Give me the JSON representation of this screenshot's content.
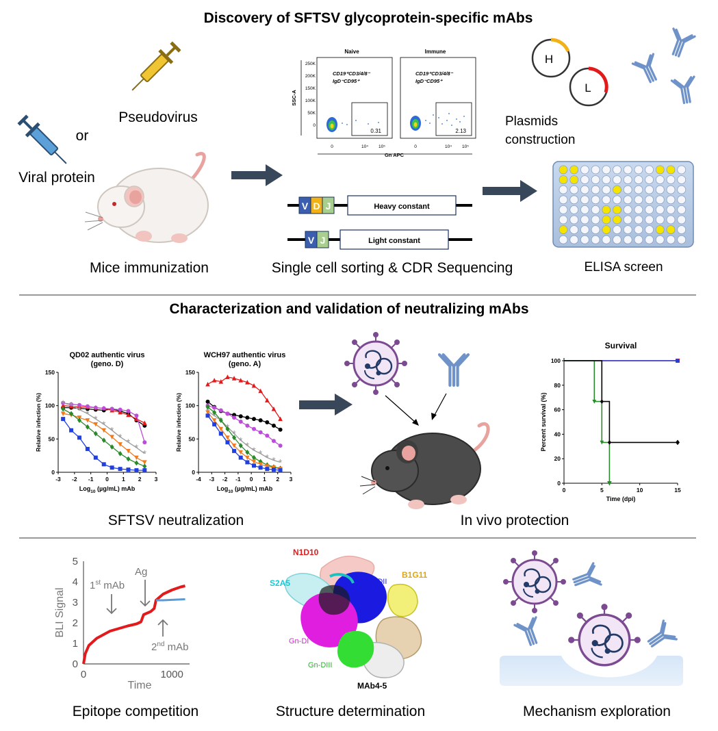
{
  "section1": {
    "title": "Discovery of SFTSV glycoprotein-specific mAbs",
    "pseudovirus": "Pseudovirus",
    "or": "or",
    "viral_protein": "Viral protein",
    "mice_label": "Mice immunization",
    "sorting_label": "Single cell sorting & CDR Sequencing",
    "plasmids_label_1": "Plasmids",
    "plasmids_label_2": "construction",
    "elisa_label": "ELISA screen",
    "H": "H",
    "L": "L",
    "facs": {
      "naive_title": "Naive",
      "immune_title": "Immune",
      "y_label": "SSC-A",
      "x_label": "Gn APC",
      "y_ticks": [
        "250K",
        "200K",
        "150K",
        "100K",
        "50K",
        "0"
      ],
      "x_ticks": [
        "0",
        "10⁴",
        "10⁵"
      ],
      "naive_gate_1": "CD19⁺CD3/4/8⁻",
      "naive_gate_2": "IgD⁻CD95⁺",
      "immune_gate_1": "CD19⁺CD3/4/8⁻",
      "immune_gate_2": "IgD⁻CD95⁺",
      "naive_pct": "0.31",
      "immune_pct": "2.13"
    },
    "heavy": {
      "V": "V",
      "D": "D",
      "J": "J",
      "constant": "Heavy constant"
    },
    "light": {
      "V": "V",
      "J": "J",
      "constant": "Light constant"
    },
    "elisa_wells": [
      [
        1,
        1,
        0,
        0,
        0,
        0,
        0,
        0,
        0,
        1,
        1,
        0
      ],
      [
        1,
        1,
        0,
        0,
        0,
        0,
        0,
        0,
        0,
        0,
        0,
        0
      ],
      [
        0,
        0,
        0,
        0,
        0,
        1,
        0,
        0,
        0,
        0,
        0,
        0
      ],
      [
        0,
        0,
        0,
        0,
        0,
        0,
        0,
        0,
        0,
        0,
        0,
        0
      ],
      [
        0,
        0,
        0,
        0,
        1,
        1,
        0,
        0,
        0,
        0,
        0,
        0
      ],
      [
        0,
        0,
        0,
        0,
        1,
        1,
        0,
        0,
        0,
        0,
        0,
        0
      ],
      [
        1,
        0,
        0,
        0,
        1,
        0,
        0,
        0,
        0,
        1,
        1,
        0
      ],
      [
        0,
        0,
        0,
        0,
        0,
        0,
        0,
        0,
        0,
        0,
        0,
        0
      ]
    ],
    "colors": {
      "V": "#3b5fae",
      "D": "#f2b114",
      "J": "#a8cf8e",
      "well_yellow": "#f5e400",
      "plate_bg": "#b9cce4"
    }
  },
  "section2": {
    "title": "Characterization and validation of neutralizing mAbs",
    "neutralization_label": "SFTSV neutralization",
    "protection_label": "In vivo protection",
    "survival_title": "Survival"
  },
  "section3": {
    "epitope_label": "Epitope competition",
    "structure_label": "Structure determination",
    "mechanism_label": "Mechanism exploration",
    "bli": {
      "y_label": "BLI Signal",
      "x_label": "Time",
      "y_ticks": [
        "5",
        "4",
        "3",
        "2",
        "1",
        "0"
      ],
      "x_ticks": [
        "0",
        "1000"
      ],
      "first_mab": "1",
      "first_sup": "st",
      "first_rest": " mAb",
      "ag": "Ag",
      "second_mab": "2",
      "second_sup": "nd",
      "second_rest": " mAb"
    },
    "structure": {
      "n1d10": "N1D10",
      "s2a5": "S2A5",
      "b1g11": "B1G11",
      "gn_dii": "Gn-DII",
      "gn_di": "Gn-DI",
      "gn_diii": "Gn-DIII",
      "mab45": "MAb4-5"
    }
  },
  "chart_data": [
    {
      "type": "line",
      "title": "QD02 authentic virus\n(geno. D)",
      "title_line1": "QD02 authentic virus",
      "title_line2": "(geno. D)",
      "xlabel": "Log10 (µg/mL) mAb",
      "ylabel": "Relative infection (%)",
      "xlim": [
        -3,
        3
      ],
      "ylim": [
        0,
        150
      ],
      "x_ticks": [
        -3,
        -2,
        -1,
        0,
        1,
        2,
        3
      ],
      "y_ticks": [
        0,
        50,
        100,
        150
      ],
      "x": [
        -2.7,
        -2.2,
        -1.7,
        -1.2,
        -0.7,
        -0.2,
        0.3,
        0.8,
        1.3,
        1.8,
        2.3
      ],
      "series": [
        {
          "color": "#000000",
          "marker": "circle",
          "values": [
            97,
            97,
            96,
            95,
            94,
            93,
            95,
            92,
            88,
            78,
            70
          ]
        },
        {
          "color": "#e31a1c",
          "marker": "triangle",
          "values": [
            100,
            99,
            98,
            98,
            97,
            96,
            93,
            90,
            86,
            80,
            74
          ]
        },
        {
          "color": "#bd4cd8",
          "marker": "circle",
          "values": [
            104,
            102,
            101,
            99,
            97,
            96,
            95,
            94,
            92,
            85,
            45
          ]
        },
        {
          "color": "#9a9a9a",
          "marker": "star",
          "values": [
            104,
            101,
            94,
            88,
            80,
            72,
            63,
            53,
            45,
            37,
            28
          ]
        },
        {
          "color": "#f07b1f",
          "marker": "triangle-down",
          "values": [
            88,
            86,
            82,
            78,
            72,
            63,
            53,
            42,
            32,
            22,
            15
          ]
        },
        {
          "color": "#2a8a2a",
          "marker": "diamond",
          "values": [
            95,
            88,
            78,
            68,
            58,
            48,
            38,
            28,
            20,
            14,
            9
          ]
        },
        {
          "color": "#1f3fe0",
          "marker": "square",
          "values": [
            80,
            63,
            52,
            35,
            22,
            12,
            7,
            5,
            4,
            3,
            3
          ]
        }
      ]
    },
    {
      "type": "line",
      "title": "WCH97 authentic virus\n(geno. A)",
      "title_line1": "WCH97 authentic virus",
      "title_line2": "(geno. A)",
      "xlabel": "Log10 (µg/mL) mAb",
      "ylabel": "Relative infection (%)",
      "xlim": [
        -4,
        3
      ],
      "ylim": [
        0,
        150
      ],
      "x_ticks": [
        -4,
        -3,
        -2,
        -1,
        0,
        1,
        2,
        3
      ],
      "y_ticks": [
        0,
        50,
        100,
        150
      ],
      "x": [
        -3.3,
        -2.8,
        -2.3,
        -1.8,
        -1.3,
        -0.8,
        -0.3,
        0.2,
        0.7,
        1.2,
        1.7,
        2.2
      ],
      "series": [
        {
          "color": "#e31a1c",
          "marker": "triangle",
          "values": [
            132,
            138,
            136,
            143,
            141,
            138,
            135,
            130,
            122,
            108,
            95,
            80
          ]
        },
        {
          "color": "#000000",
          "marker": "circle",
          "values": [
            106,
            98,
            92,
            88,
            86,
            84,
            82,
            80,
            78,
            75,
            70,
            64
          ]
        },
        {
          "color": "#bd4cd8",
          "marker": "circle",
          "values": [
            100,
            97,
            93,
            88,
            82,
            76,
            70,
            65,
            60,
            55,
            47,
            40
          ]
        },
        {
          "color": "#9a9a9a",
          "marker": "star",
          "values": [
            92,
            85,
            78,
            68,
            58,
            48,
            40,
            33,
            28,
            22,
            18,
            15
          ]
        },
        {
          "color": "#2a8a2a",
          "marker": "diamond",
          "values": [
            98,
            90,
            78,
            65,
            52,
            40,
            30,
            22,
            16,
            11,
            8,
            6
          ]
        },
        {
          "color": "#f07b1f",
          "marker": "triangle-down",
          "values": [
            90,
            78,
            65,
            52,
            40,
            30,
            22,
            16,
            12,
            9,
            7,
            5
          ]
        },
        {
          "color": "#1f3fe0",
          "marker": "square",
          "values": [
            85,
            72,
            58,
            45,
            32,
            22,
            15,
            10,
            7,
            5,
            4,
            3
          ]
        }
      ]
    },
    {
      "type": "line",
      "title": "Survival",
      "xlabel": "Time (dpi)",
      "ylabel": "Percent survival (%)",
      "xlim": [
        0,
        15
      ],
      "ylim": [
        0,
        100
      ],
      "x_ticks": [
        0,
        5,
        10,
        15
      ],
      "y_ticks": [
        0,
        20,
        40,
        60,
        80,
        100
      ],
      "series": [
        {
          "color": "#e31a1c",
          "marker": "square",
          "steps": [
            [
              0,
              100
            ],
            [
              15,
              100
            ]
          ]
        },
        {
          "color": "#1f3fe0",
          "marker": "circle",
          "steps": [
            [
              0,
              100
            ],
            [
              15,
              100
            ]
          ]
        },
        {
          "color": "#2a8a2a",
          "marker": "triangle-down",
          "steps": [
            [
              0,
              100
            ],
            [
              4,
              100
            ],
            [
              4,
              66.7
            ],
            [
              5,
              66.7
            ],
            [
              5,
              33.3
            ],
            [
              6,
              33.3
            ],
            [
              6,
              0
            ]
          ]
        },
        {
          "color": "#000000",
          "marker": "diamond",
          "steps": [
            [
              0,
              100
            ],
            [
              5,
              100
            ],
            [
              5,
              66.7
            ],
            [
              6,
              66.7
            ],
            [
              6,
              33.3
            ],
            [
              15,
              33.3
            ]
          ]
        }
      ]
    },
    {
      "type": "line",
      "title": "",
      "xlabel": "Time",
      "ylabel": "BLI Signal",
      "xlim": [
        0,
        1200
      ],
      "ylim": [
        0,
        5
      ],
      "series": [
        {
          "color": "#e31a1c",
          "values_xy": [
            [
              0,
              0
            ],
            [
              20,
              0.5
            ],
            [
              60,
              0.9
            ],
            [
              150,
              1.25
            ],
            [
              300,
              1.6
            ],
            [
              500,
              1.85
            ],
            [
              600,
              1.95
            ],
            [
              650,
              2.05
            ],
            [
              680,
              2.4
            ],
            [
              760,
              2.55
            ],
            [
              800,
              2.7
            ],
            [
              820,
              3.1
            ],
            [
              900,
              3.4
            ],
            [
              1000,
              3.6
            ],
            [
              1100,
              3.75
            ],
            [
              1150,
              3.8
            ]
          ]
        },
        {
          "color": "#5b9bd5",
          "values_xy": [
            [
              820,
              3.1
            ],
            [
              900,
              3.1
            ],
            [
              1000,
              3.12
            ],
            [
              1150,
              3.15
            ]
          ]
        }
      ]
    }
  ]
}
